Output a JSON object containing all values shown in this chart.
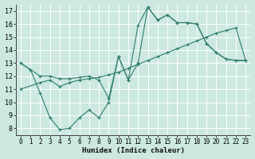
{
  "xlabel": "Humidex (Indice chaleur)",
  "bg_color": "#cce8e0",
  "grid_color": "#ffffff",
  "line_color": "#2e7d6e",
  "xlim": [
    -0.5,
    23.5
  ],
  "ylim": [
    7.5,
    17.5
  ],
  "xticks": [
    0,
    1,
    2,
    3,
    4,
    5,
    6,
    7,
    8,
    9,
    10,
    11,
    12,
    13,
    14,
    15,
    16,
    17,
    18,
    19,
    20,
    21,
    22,
    23
  ],
  "yticks": [
    8,
    9,
    10,
    11,
    12,
    13,
    14,
    15,
    16,
    17
  ],
  "line1_x": [
    0,
    1,
    2,
    3,
    4,
    5,
    6,
    7,
    8,
    9,
    10,
    11,
    12,
    13,
    14,
    15,
    16,
    17,
    18,
    19,
    20,
    21,
    22,
    23
  ],
  "line1_y": [
    13.0,
    12.5,
    12.0,
    12.0,
    11.8,
    11.8,
    11.9,
    12.0,
    11.7,
    10.3,
    13.5,
    11.7,
    13.0,
    17.3,
    16.3,
    16.7,
    16.1,
    16.1,
    16.0,
    14.5,
    13.8,
    13.3,
    13.2,
    13.2
  ],
  "line2_x": [
    0,
    1,
    2,
    3,
    4,
    5,
    6,
    7,
    8,
    9,
    10,
    11,
    12,
    13,
    14,
    15,
    16,
    17,
    18,
    19,
    20,
    21,
    22,
    23
  ],
  "line2_y": [
    13.0,
    12.5,
    10.7,
    8.8,
    7.9,
    8.0,
    8.8,
    9.4,
    8.8,
    10.0,
    13.5,
    11.7,
    15.9,
    17.3,
    16.3,
    16.7,
    16.1,
    16.1,
    16.0,
    14.5,
    13.8,
    13.3,
    13.2,
    13.2
  ],
  "line3_x": [
    0,
    2,
    3,
    4,
    5,
    6,
    7,
    8,
    9,
    10,
    11,
    12,
    13,
    14,
    15,
    16,
    17,
    18,
    19,
    20,
    21,
    22,
    23
  ],
  "line3_y": [
    11.0,
    11.5,
    11.7,
    11.2,
    11.5,
    11.7,
    11.8,
    11.9,
    12.1,
    12.3,
    12.6,
    12.9,
    13.2,
    13.5,
    13.8,
    14.1,
    14.4,
    14.7,
    15.0,
    15.3,
    15.5,
    15.7,
    13.2
  ]
}
